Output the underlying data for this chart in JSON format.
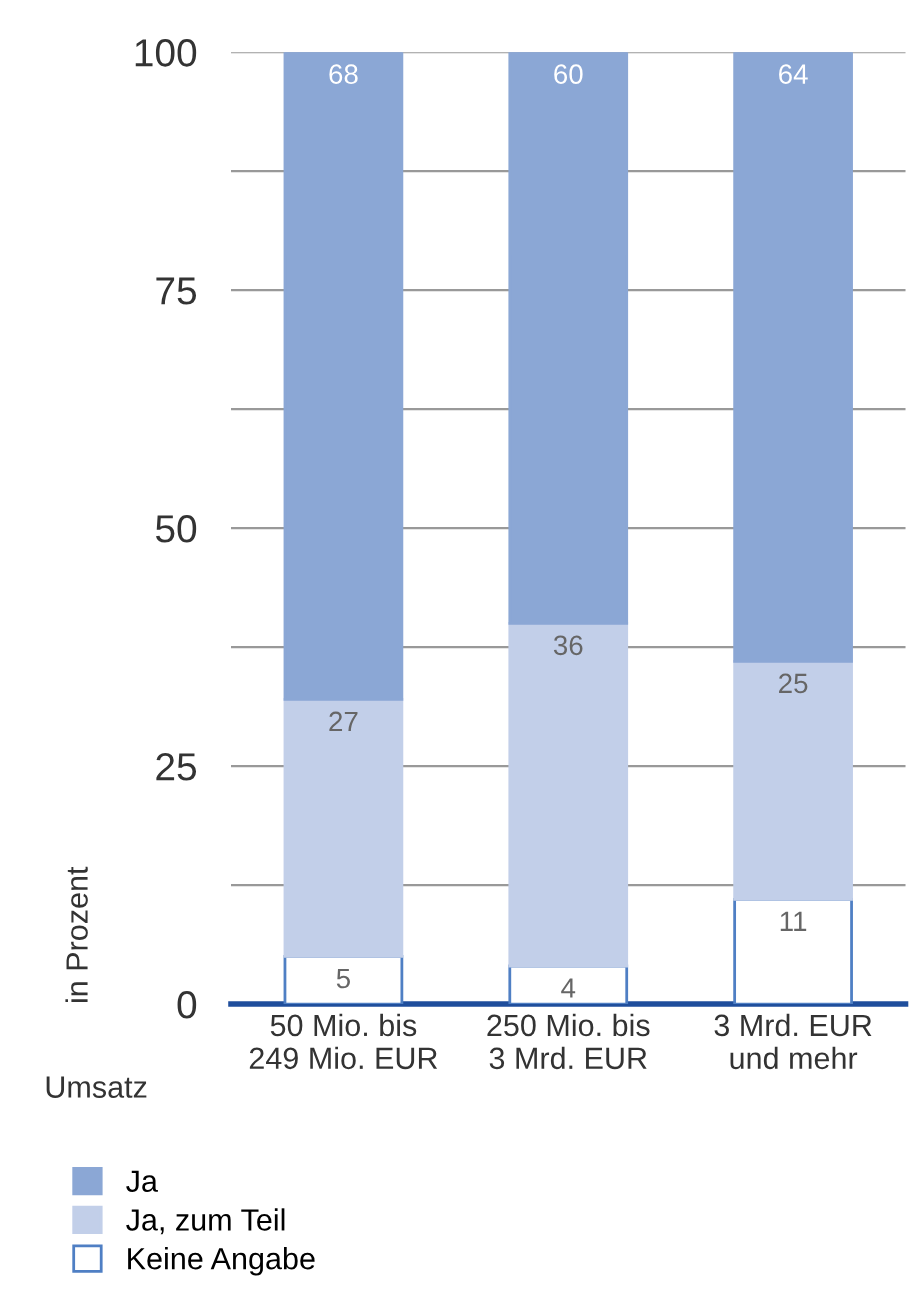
{
  "chart_data": {
    "type": "bar",
    "stacked": true,
    "ylabel": "in Prozent",
    "xlabel": "Umsatz",
    "categories": [
      "50 Mio. bis\n249 Mio. EUR",
      "250 Mio. bis\n3 Mrd. EUR",
      "3 Mrd. EUR\nund mehr"
    ],
    "series": [
      {
        "name": "Keine Angabe",
        "color": "#ffffff",
        "values": [
          5,
          4,
          11
        ]
      },
      {
        "name": "Ja, zum Teil",
        "color": "#c2cfe9",
        "values": [
          27,
          36,
          25
        ]
      },
      {
        "name": "Ja",
        "color": "#8ba7d5",
        "values": [
          68,
          60,
          64
        ]
      }
    ],
    "ylim": [
      0,
      100
    ],
    "yticks": [
      0,
      {
        "value": 12.5,
        "label": null
      },
      25,
      {
        "value": 37.5,
        "label": null
      },
      50,
      {
        "value": 62.5,
        "label": null
      },
      75,
      {
        "value": 87.5,
        "label": null
      },
      100
    ],
    "grid": "y",
    "legend": "bottom",
    "data_labels": true
  }
}
